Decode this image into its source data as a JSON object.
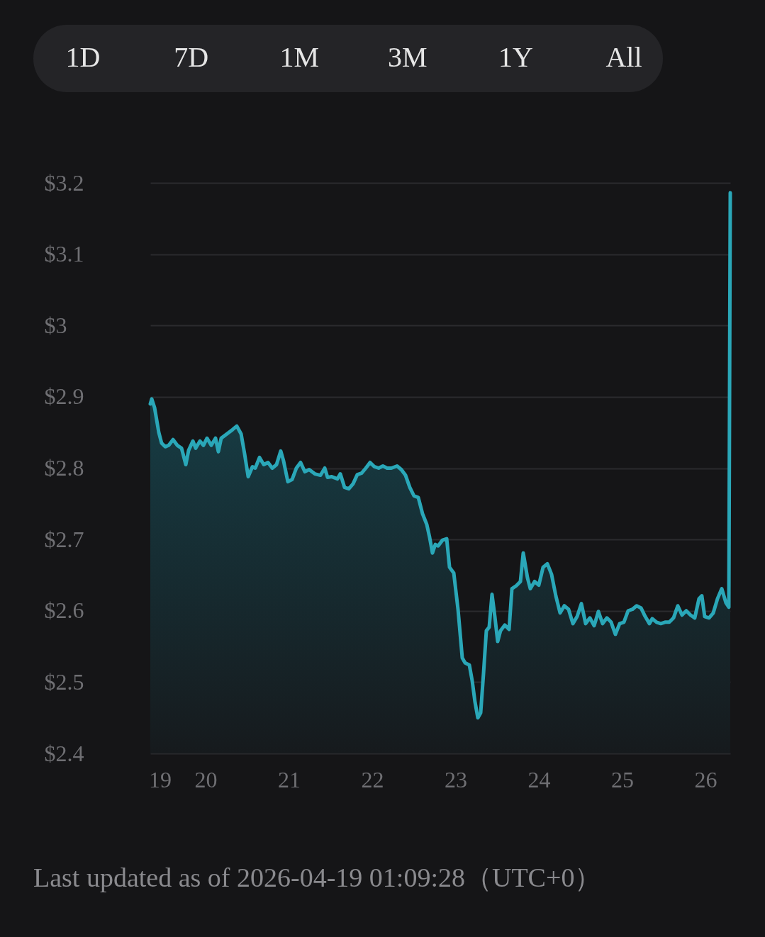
{
  "chart_data": {
    "type": "area",
    "annotations": [
      "1D",
      "7D",
      "1M",
      "3M",
      "1Y",
      "All",
      "Last updated as of 2026-04-19 01:09:28（UTC+0）"
    ],
    "x": [
      19.336,
      19.353,
      19.387,
      19.438,
      19.472,
      19.515,
      19.557,
      19.609,
      19.66,
      19.711,
      19.762,
      19.796,
      19.847,
      19.881,
      19.932,
      19.974,
      20.017,
      20.068,
      20.119,
      20.153,
      20.187,
      20.255,
      20.323,
      20.374,
      20.426,
      20.468,
      20.511,
      20.562,
      20.596,
      20.647,
      20.698,
      20.749,
      20.8,
      20.851,
      20.902,
      20.936,
      20.987,
      21.038,
      21.089,
      21.14,
      21.191,
      21.243,
      21.311,
      21.379,
      21.43,
      21.464,
      21.515,
      21.583,
      21.617,
      21.668,
      21.719,
      21.77,
      21.821,
      21.872,
      21.923,
      21.974,
      22.026,
      22.077,
      22.128,
      22.179,
      22.23,
      22.298,
      22.349,
      22.4,
      22.451,
      22.502,
      22.553,
      22.604,
      22.655,
      22.689,
      22.723,
      22.757,
      22.791,
      22.843,
      22.894,
      22.928,
      22.979,
      23.03,
      23.081,
      23.115,
      23.166,
      23.2,
      23.234,
      23.268,
      23.302,
      23.336,
      23.37,
      23.404,
      23.438,
      23.472,
      23.506,
      23.54,
      23.591,
      23.643,
      23.677,
      23.728,
      23.779,
      23.813,
      23.864,
      23.898,
      23.949,
      24.0,
      24.051,
      24.102,
      24.153,
      24.204,
      24.255,
      24.306,
      24.357,
      24.409,
      24.46,
      24.511,
      24.562,
      24.613,
      24.664,
      24.715,
      24.766,
      24.817,
      24.868,
      24.919,
      24.97,
      25.021,
      25.072,
      25.123,
      25.174,
      25.226,
      25.277,
      25.328,
      25.362,
      25.413,
      25.464,
      25.515,
      25.566,
      25.617,
      25.668,
      25.719,
      25.77,
      25.821,
      25.872,
      25.923,
      25.957,
      25.991,
      26.043,
      26.094,
      26.145,
      26.196,
      26.247,
      26.281,
      26.298
    ],
    "series": [
      {
        "color": "#2aa7b8",
        "values": [
          2.89,
          2.897,
          2.885,
          2.85,
          2.835,
          2.83,
          2.832,
          2.84,
          2.832,
          2.828,
          2.805,
          2.825,
          2.838,
          2.828,
          2.838,
          2.832,
          2.842,
          2.832,
          2.842,
          2.823,
          2.842,
          2.848,
          2.854,
          2.859,
          2.848,
          2.82,
          2.788,
          2.802,
          2.8,
          2.815,
          2.805,
          2.808,
          2.8,
          2.805,
          2.824,
          2.81,
          2.781,
          2.784,
          2.8,
          2.808,
          2.795,
          2.798,
          2.792,
          2.79,
          2.8,
          2.787,
          2.788,
          2.785,
          2.792,
          2.773,
          2.771,
          2.778,
          2.791,
          2.793,
          2.8,
          2.808,
          2.802,
          2.8,
          2.803,
          2.8,
          2.8,
          2.803,
          2.798,
          2.79,
          2.773,
          2.761,
          2.759,
          2.736,
          2.721,
          2.703,
          2.681,
          2.693,
          2.691,
          2.699,
          2.701,
          2.661,
          2.653,
          2.602,
          2.534,
          2.527,
          2.524,
          2.502,
          2.472,
          2.45,
          2.457,
          2.512,
          2.572,
          2.577,
          2.623,
          2.592,
          2.557,
          2.572,
          2.58,
          2.574,
          2.631,
          2.635,
          2.641,
          2.681,
          2.646,
          2.631,
          2.641,
          2.636,
          2.661,
          2.666,
          2.651,
          2.621,
          2.597,
          2.607,
          2.602,
          2.582,
          2.592,
          2.61,
          2.582,
          2.59,
          2.579,
          2.599,
          2.582,
          2.59,
          2.584,
          2.567,
          2.582,
          2.584,
          2.6,
          2.602,
          2.607,
          2.604,
          2.592,
          2.582,
          2.589,
          2.584,
          2.582,
          2.584,
          2.584,
          2.59,
          2.607,
          2.594,
          2.6,
          2.594,
          2.59,
          2.617,
          2.621,
          2.592,
          2.59,
          2.597,
          2.617,
          2.631,
          2.611,
          2.605,
          3.186
        ]
      }
    ],
    "xlim": [
      19.336,
      26.298
    ],
    "ylim": [
      2.4,
      3.2
    ],
    "xticks": [
      {
        "value": 19.45,
        "label": "19"
      },
      20,
      21,
      22,
      23,
      24,
      25,
      26
    ],
    "yticks": [
      {
        "value": 2.4,
        "label": "$2.4"
      },
      {
        "value": 2.5,
        "label": "$2.5"
      },
      {
        "value": 2.6,
        "label": "$2.6"
      },
      {
        "value": 2.7,
        "label": "$2.7"
      },
      {
        "value": 2.8,
        "label": "$2.8"
      },
      {
        "value": 2.9,
        "label": "$2.9"
      },
      {
        "value": 3,
        "label": "$3"
      },
      {
        "value": 3.1,
        "label": "$3.1"
      },
      {
        "value": 3.2,
        "label": "$3.2"
      }
    ],
    "grid": "y"
  }
}
